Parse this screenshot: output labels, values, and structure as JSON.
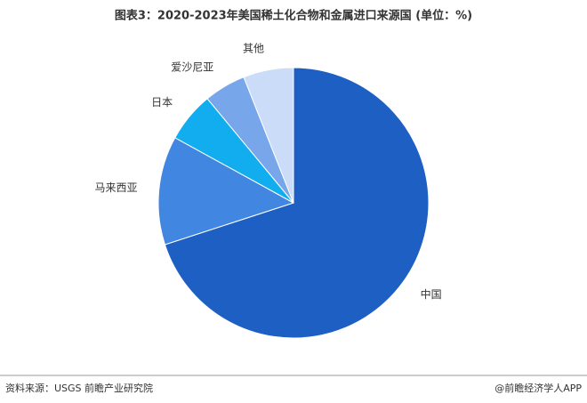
{
  "chart_data": {
    "type": "pie",
    "title": "图表3：2020-2023年美国稀土化合物和金属进口来源国 (单位：%)",
    "categories": [
      "中国",
      "马来西亚",
      "日本",
      "爱沙尼亚",
      "其他"
    ],
    "values": [
      70,
      13,
      6,
      5,
      6
    ],
    "colors": [
      "#1d5fc2",
      "#4186e0",
      "#12adef",
      "#78a6ea",
      "#cadcf7"
    ],
    "source": "资料来源：USGS 前瞻产业研究院",
    "credit": "@前瞻经济学人APP"
  }
}
